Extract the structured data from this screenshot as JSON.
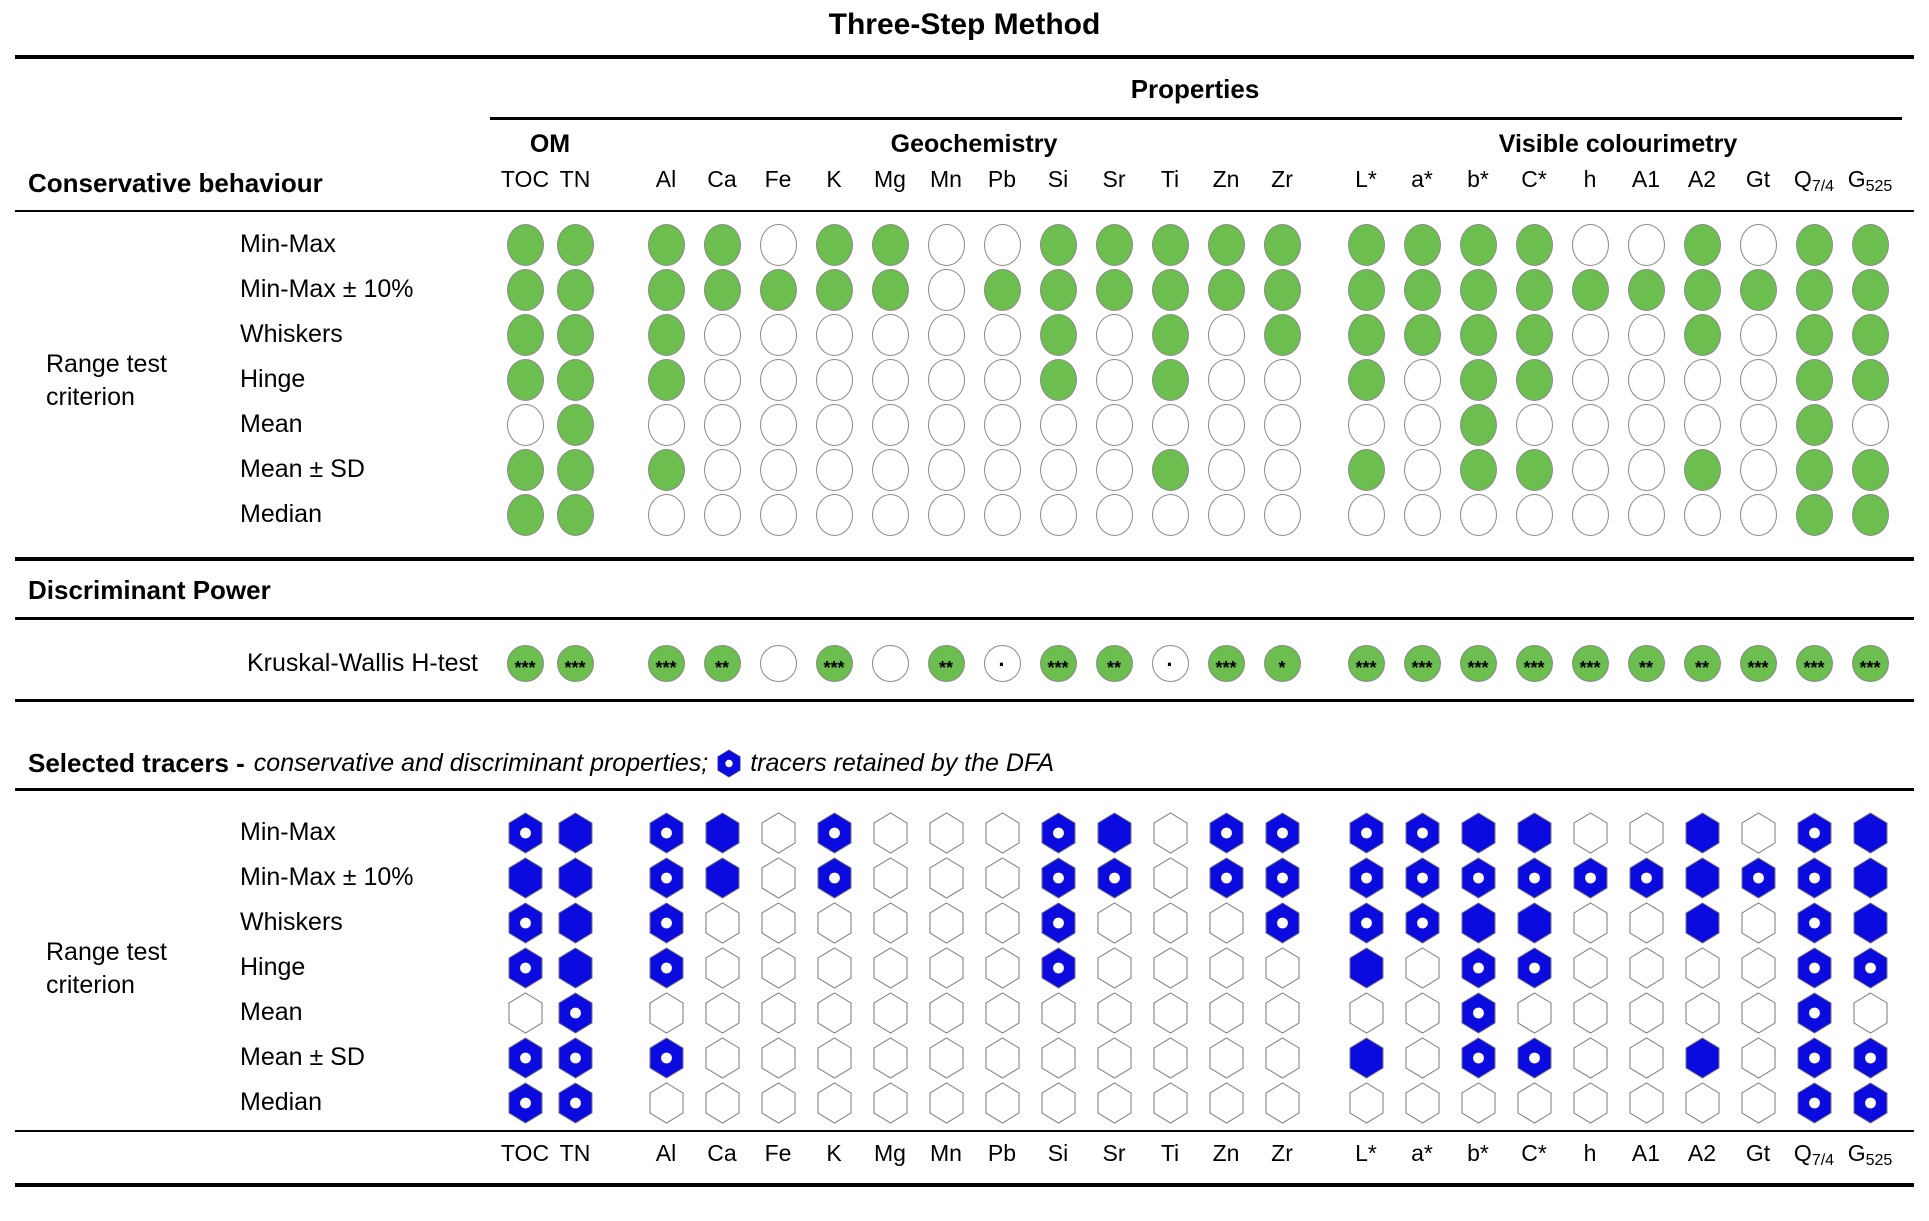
{
  "title": "Three-Step Method",
  "properties_header": "Properties",
  "groups": [
    {
      "label": "OM"
    },
    {
      "label": "Geochemistry"
    },
    {
      "label": "Visible colourimetry"
    }
  ],
  "columns": [
    {
      "label": "TOC"
    },
    {
      "label": "TN"
    },
    {
      "label": "Al"
    },
    {
      "label": "Ca"
    },
    {
      "label": "Fe"
    },
    {
      "label": "K"
    },
    {
      "label": "Mg"
    },
    {
      "label": "Mn"
    },
    {
      "label": "Pb"
    },
    {
      "label": "Si"
    },
    {
      "label": "Sr"
    },
    {
      "label": "Ti"
    },
    {
      "label": "Zn"
    },
    {
      "label": "Zr"
    },
    {
      "label": "L*"
    },
    {
      "label": "a*"
    },
    {
      "label": "b*"
    },
    {
      "label": "C*"
    },
    {
      "label": "h"
    },
    {
      "label": "A1"
    },
    {
      "label": "A2"
    },
    {
      "label": "Gt"
    },
    {
      "label": "Q",
      "sub": "7/4"
    },
    {
      "label": "G",
      "sub": "525"
    }
  ],
  "row_labels": [
    "Min-Max",
    "Min-Max ± 10%",
    "Whiskers",
    "Hinge",
    "Mean",
    "Mean ± SD",
    "Median"
  ],
  "sections": {
    "conservative": {
      "heading": "Conservative behaviour",
      "side_label": "Range test criterion"
    },
    "discriminant": {
      "heading": "Discriminant Power",
      "row_label": "Kruskal-Wallis H-test"
    },
    "selected": {
      "heading": "Selected tracers -",
      "subtitle": "conservative and discriminant properties;",
      "legend": "tracers retained by the DFA",
      "side_label": "Range test criterion"
    }
  },
  "colors": {
    "green": "#6CBE4E",
    "blue": "#0B0BE0",
    "stroke": "#8a8a8a"
  },
  "chart_data": {
    "type": "table",
    "title": "Three-Step Method",
    "columns": [
      "TOC",
      "TN",
      "Al",
      "Ca",
      "Fe",
      "K",
      "Mg",
      "Mn",
      "Pb",
      "Si",
      "Sr",
      "Ti",
      "Zn",
      "Zr",
      "L*",
      "a*",
      "b*",
      "C*",
      "h",
      "A1",
      "A2",
      "Gt",
      "Q7/4",
      "G525"
    ],
    "column_groups": {
      "OM": [
        "TOC",
        "TN"
      ],
      "Geochemistry": [
        "Al",
        "Ca",
        "Fe",
        "K",
        "Mg",
        "Mn",
        "Pb",
        "Si",
        "Sr",
        "Ti",
        "Zn",
        "Zr"
      ],
      "Visible colourimetry": [
        "L*",
        "a*",
        "b*",
        "C*",
        "h",
        "A1",
        "A2",
        "Gt",
        "Q7/4",
        "G525"
      ]
    },
    "range_test_rows": [
      "Min-Max",
      "Min-Max ± 10%",
      "Whiskers",
      "Hinge",
      "Mean",
      "Mean ± SD",
      "Median"
    ],
    "conservative_matrix": [
      [
        1,
        1,
        1,
        1,
        0,
        1,
        1,
        0,
        0,
        1,
        1,
        1,
        1,
        1,
        1,
        1,
        1,
        1,
        0,
        0,
        1,
        0,
        1,
        1
      ],
      [
        1,
        1,
        1,
        1,
        1,
        1,
        1,
        0,
        1,
        1,
        1,
        1,
        1,
        1,
        1,
        1,
        1,
        1,
        1,
        1,
        1,
        1,
        1,
        1
      ],
      [
        1,
        1,
        1,
        0,
        0,
        0,
        0,
        0,
        0,
        1,
        0,
        1,
        0,
        1,
        1,
        1,
        1,
        1,
        0,
        0,
        1,
        0,
        1,
        1
      ],
      [
        1,
        1,
        1,
        0,
        0,
        0,
        0,
        0,
        0,
        1,
        0,
        1,
        0,
        0,
        1,
        0,
        1,
        1,
        0,
        0,
        0,
        0,
        1,
        1
      ],
      [
        0,
        1,
        0,
        0,
        0,
        0,
        0,
        0,
        0,
        0,
        0,
        0,
        0,
        0,
        0,
        0,
        1,
        0,
        0,
        0,
        0,
        0,
        1,
        0
      ],
      [
        1,
        1,
        1,
        0,
        0,
        0,
        0,
        0,
        0,
        0,
        0,
        1,
        0,
        0,
        1,
        0,
        1,
        1,
        0,
        0,
        1,
        0,
        1,
        1
      ],
      [
        1,
        1,
        0,
        0,
        0,
        0,
        0,
        0,
        0,
        0,
        0,
        0,
        0,
        0,
        0,
        0,
        0,
        0,
        0,
        0,
        0,
        0,
        1,
        1
      ]
    ],
    "kruskal_wallis": [
      "***",
      "***",
      "***",
      "**",
      "",
      "***",
      "",
      "**",
      ".",
      "***",
      "**",
      ".",
      "***",
      "*",
      "***",
      "***",
      "***",
      "***",
      "***",
      "**",
      "**",
      "***",
      "***",
      "***"
    ],
    "selected_matrix": [
      [
        "dot",
        "solid",
        "dot",
        "solid",
        "empty",
        "dot",
        "empty",
        "empty",
        "empty",
        "dot",
        "solid",
        "empty",
        "dot",
        "dot",
        "dot",
        "dot",
        "solid",
        "solid",
        "empty",
        "empty",
        "solid",
        "empty",
        "dot",
        "solid"
      ],
      [
        "solid",
        "solid",
        "dot",
        "solid",
        "empty",
        "dot",
        "empty",
        "empty",
        "empty",
        "dot",
        "dot",
        "empty",
        "dot",
        "dot",
        "dot",
        "dot",
        "dot",
        "dot",
        "dot",
        "dot",
        "solid",
        "dot",
        "dot",
        "solid"
      ],
      [
        "dot",
        "solid",
        "dot",
        "empty",
        "empty",
        "empty",
        "empty",
        "empty",
        "empty",
        "dot",
        "empty",
        "empty",
        "empty",
        "dot",
        "dot",
        "dot",
        "solid",
        "solid",
        "empty",
        "empty",
        "solid",
        "empty",
        "dot",
        "solid"
      ],
      [
        "dot",
        "solid",
        "dot",
        "empty",
        "empty",
        "empty",
        "empty",
        "empty",
        "empty",
        "dot",
        "empty",
        "empty",
        "empty",
        "empty",
        "solid",
        "empty",
        "dot",
        "dot",
        "empty",
        "empty",
        "empty",
        "empty",
        "dot",
        "dot"
      ],
      [
        "empty",
        "dot",
        "empty",
        "empty",
        "empty",
        "empty",
        "empty",
        "empty",
        "empty",
        "empty",
        "empty",
        "empty",
        "empty",
        "empty",
        "empty",
        "empty",
        "dot",
        "empty",
        "empty",
        "empty",
        "empty",
        "empty",
        "dot",
        "empty"
      ],
      [
        "dot",
        "dot",
        "dot",
        "empty",
        "empty",
        "empty",
        "empty",
        "empty",
        "empty",
        "empty",
        "empty",
        "empty",
        "empty",
        "empty",
        "solid",
        "empty",
        "dot",
        "dot",
        "empty",
        "empty",
        "solid",
        "empty",
        "dot",
        "dot"
      ],
      [
        "dot",
        "dot",
        "empty",
        "empty",
        "empty",
        "empty",
        "empty",
        "empty",
        "empty",
        "empty",
        "empty",
        "empty",
        "empty",
        "empty",
        "empty",
        "empty",
        "empty",
        "empty",
        "empty",
        "empty",
        "empty",
        "empty",
        "dot",
        "dot"
      ]
    ],
    "cell_states_legend": {
      "conservative_matrix": "1 = filled green circle (conservative), 0 = empty circle",
      "selected_matrix": "dot = blue hexagon with white dot (retained by DFA), solid = blue hexagon, empty = white hexagon"
    }
  }
}
